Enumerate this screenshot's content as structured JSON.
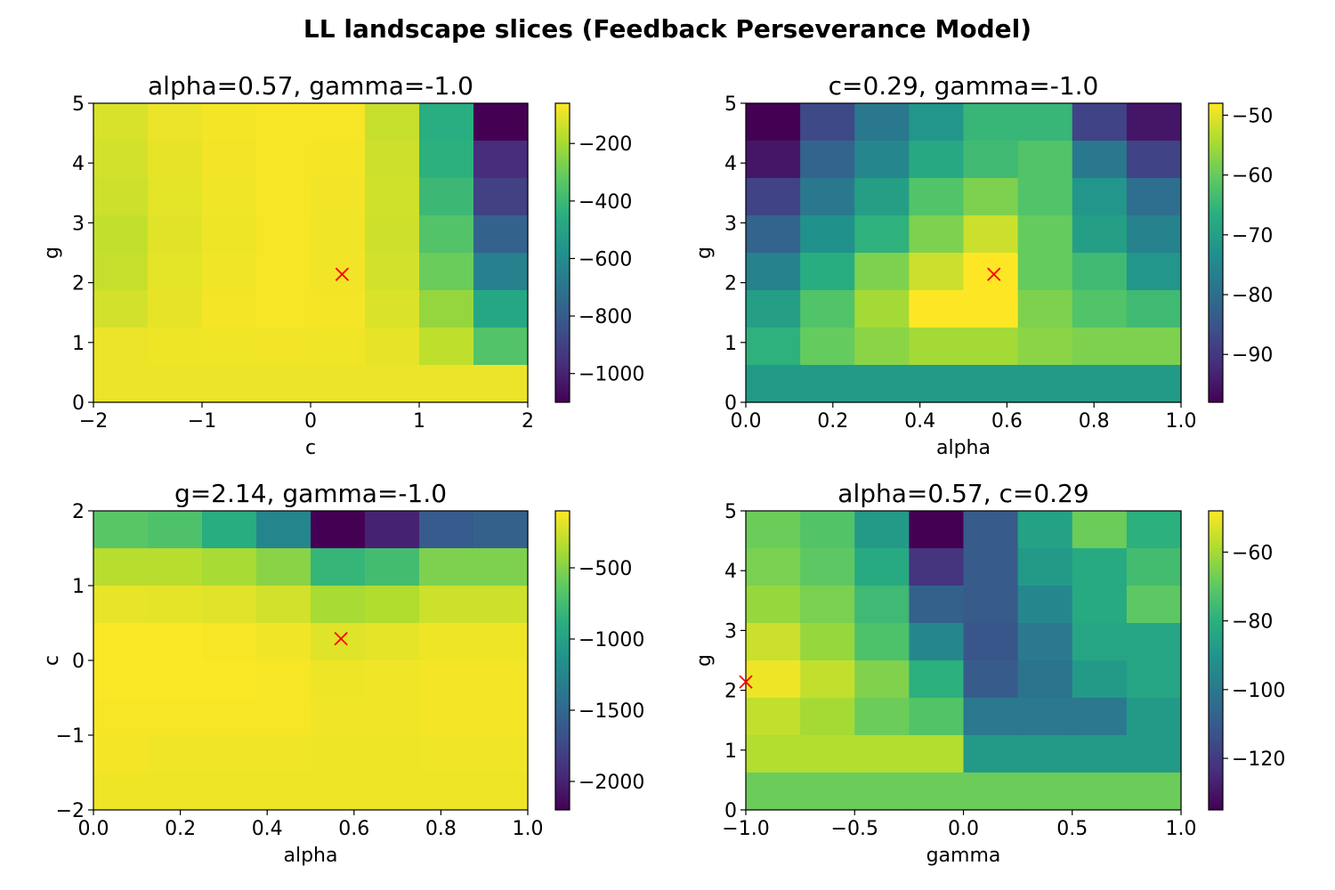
{
  "figure": {
    "suptitle": "LL landscape slices (Feedback Perseverance Model)"
  },
  "chart_data": [
    {
      "type": "heatmap",
      "title": "alpha=0.57, gamma=-1.0",
      "xlabel": "c",
      "ylabel": "g",
      "xlim": [
        -2,
        2
      ],
      "ylim": [
        0,
        5
      ],
      "xticks": [
        "−2",
        "−1",
        "0",
        "1",
        "2"
      ],
      "yticks": [
        "0",
        "1",
        "2",
        "3",
        "4",
        "5"
      ],
      "colorbar": {
        "vmin": -1100,
        "vmax": -60,
        "ticks": [
          "−200",
          "−400",
          "−600",
          "−800",
          "−1000"
        ],
        "tick_values": [
          -200,
          -400,
          -600,
          -800,
          -1000
        ]
      },
      "grid": {
        "nx": 8,
        "ny": 8,
        "note": "rows listed from g=5 (top) to g=0 (bottom)"
      },
      "z": [
        [
          -120,
          -90,
          -75,
          -70,
          -72,
          -150,
          -450,
          -1100
        ],
        [
          -130,
          -95,
          -78,
          -70,
          -75,
          -140,
          -440,
          -970
        ],
        [
          -140,
          -100,
          -80,
          -70,
          -78,
          -135,
          -400,
          -900
        ],
        [
          -155,
          -105,
          -82,
          -72,
          -80,
          -140,
          -350,
          -770
        ],
        [
          -150,
          -100,
          -80,
          -72,
          -78,
          -130,
          -300,
          -650
        ],
        [
          -130,
          -95,
          -75,
          -70,
          -75,
          -115,
          -230,
          -480
        ],
        [
          -90,
          -85,
          -80,
          -78,
          -80,
          -95,
          -160,
          -350
        ],
        [
          -90,
          -90,
          -90,
          -90,
          -90,
          -90,
          -90,
          -90
        ]
      ],
      "marker": {
        "x": 0.29,
        "y": 2.14
      }
    },
    {
      "type": "heatmap",
      "title": "c=0.29, gamma=-1.0",
      "xlabel": "alpha",
      "ylabel": "g",
      "xlim": [
        0,
        1
      ],
      "ylim": [
        0,
        5
      ],
      "xticks": [
        "0.0",
        "0.2",
        "0.4",
        "0.6",
        "0.8",
        "1.0"
      ],
      "yticks": [
        "0",
        "1",
        "2",
        "3",
        "4",
        "5"
      ],
      "colorbar": {
        "vmin": -98,
        "vmax": -48,
        "ticks": [
          "−50",
          "−60",
          "−70",
          "−80",
          "−90"
        ],
        "tick_values": [
          -50,
          -60,
          -70,
          -80,
          -90
        ]
      },
      "grid": {
        "nx": 8,
        "ny": 8,
        "note": "rows listed from g=5 (top) to g=0 (bottom)"
      },
      "z": [
        [
          -98,
          -87,
          -78,
          -72,
          -65,
          -65,
          -88,
          -95
        ],
        [
          -95,
          -82,
          -75,
          -68,
          -64,
          -62,
          -78,
          -88
        ],
        [
          -88,
          -78,
          -70,
          -62,
          -58,
          -62,
          -72,
          -80
        ],
        [
          -82,
          -73,
          -66,
          -58,
          -52,
          -60,
          -70,
          -76
        ],
        [
          -76,
          -67,
          -58,
          -52,
          -48,
          -60,
          -64,
          -72
        ],
        [
          -70,
          -62,
          -55,
          -48,
          -48,
          -58,
          -62,
          -64
        ],
        [
          -66,
          -60,
          -57,
          -55,
          -55,
          -57,
          -58,
          -58
        ],
        [
          -71,
          -71,
          -71,
          -71,
          -71,
          -71,
          -71,
          -71
        ]
      ],
      "marker": {
        "x": 0.57,
        "y": 2.14
      }
    },
    {
      "type": "heatmap",
      "title": "g=2.14, gamma=-1.0",
      "xlabel": "alpha",
      "ylabel": "c",
      "xlim": [
        0,
        1
      ],
      "ylim": [
        -2,
        2
      ],
      "xticks": [
        "0.0",
        "0.2",
        "0.4",
        "0.6",
        "0.8",
        "1.0"
      ],
      "yticks": [
        "−2",
        "−1",
        "0",
        "1",
        "2"
      ],
      "colorbar": {
        "vmin": -2200,
        "vmax": -100,
        "ticks": [
          "−500",
          "−1000",
          "−1500",
          "−2000"
        ],
        "tick_values": [
          -500,
          -1000,
          -1500,
          -2000
        ]
      },
      "grid": {
        "nx": 8,
        "ny": 8,
        "note": "rows listed from c=2 (top) to c=-2 (bottom)"
      },
      "z": [
        [
          -650,
          -700,
          -900,
          -1250,
          -2200,
          -2000,
          -1600,
          -1550
        ],
        [
          -330,
          -330,
          -380,
          -480,
          -820,
          -750,
          -520,
          -520
        ],
        [
          -170,
          -180,
          -200,
          -240,
          -380,
          -350,
          -260,
          -260
        ],
        [
          -110,
          -110,
          -120,
          -140,
          -200,
          -180,
          -150,
          -150
        ],
        [
          -110,
          -110,
          -110,
          -120,
          -150,
          -140,
          -130,
          -130
        ],
        [
          -120,
          -120,
          -120,
          -120,
          -140,
          -140,
          -130,
          -130
        ],
        [
          -130,
          -140,
          -140,
          -140,
          -150,
          -150,
          -140,
          -140
        ],
        [
          -150,
          -150,
          -150,
          -150,
          -150,
          -150,
          -150,
          -150
        ]
      ],
      "marker": {
        "x": 0.57,
        "y": 0.29
      }
    },
    {
      "type": "heatmap",
      "title": "alpha=0.57, c=0.29",
      "xlabel": "gamma",
      "ylabel": "g",
      "xlim": [
        -1,
        1
      ],
      "ylim": [
        0,
        5
      ],
      "xticks": [
        "−1.0",
        "−0.5",
        "0.0",
        "0.5",
        "1.0"
      ],
      "yticks": [
        "0",
        "1",
        "2",
        "3",
        "4",
        "5"
      ],
      "colorbar": {
        "vmin": -135,
        "vmax": -48,
        "ticks": [
          "−60",
          "−80",
          "−100",
          "−120"
        ],
        "tick_values": [
          -60,
          -80,
          -100,
          -120
        ]
      },
      "grid": {
        "nx": 8,
        "ny": 8,
        "note": "rows listed from g=5 (top) to g=0 (bottom)"
      },
      "z": [
        [
          -68,
          -72,
          -88,
          -135,
          -110,
          -85,
          -68,
          -80
        ],
        [
          -66,
          -70,
          -82,
          -122,
          -110,
          -88,
          -82,
          -75
        ],
        [
          -62,
          -66,
          -76,
          -108,
          -110,
          -95,
          -82,
          -70
        ],
        [
          -55,
          -62,
          -73,
          -95,
          -112,
          -100,
          -84,
          -84
        ],
        [
          -50,
          -56,
          -65,
          -80,
          -110,
          -102,
          -88,
          -84
        ],
        [
          -56,
          -60,
          -68,
          -72,
          -100,
          -100,
          -100,
          -88
        ],
        [
          -58,
          -58,
          -58,
          -58,
          -88,
          -88,
          -88,
          -88
        ],
        [
          -68,
          -68,
          -68,
          -68,
          -68,
          -68,
          -68,
          -68
        ]
      ],
      "marker": {
        "x": -1.0,
        "y": 2.14
      }
    }
  ]
}
